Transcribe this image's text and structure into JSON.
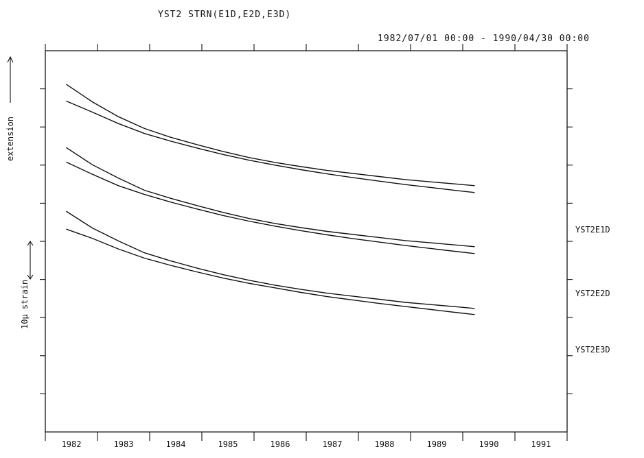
{
  "chart_data": {
    "type": "line",
    "title": "YST2 STRN(E1D,E2D,E3D)",
    "date_range": "1982/07/01 00:00 - 1990/04/30 00:00",
    "ylabel": "extension",
    "scale_label": "10µ strain",
    "x_tick_labels": [
      "1982",
      "1983",
      "1984",
      "1985",
      "1986",
      "1987",
      "1988",
      "1989",
      "1990",
      "1991"
    ],
    "xlim": [
      1981.6,
      1991.6
    ],
    "ylim": [
      0,
      100
    ],
    "grid": false,
    "series": [
      {
        "name": "YST2E1D",
        "x": [
          1982.0,
          1982.5,
          1983.0,
          1983.5,
          1984.0,
          1984.5,
          1985.0,
          1985.5,
          1986.0,
          1986.5,
          1987.0,
          1987.5,
          1988.0,
          1988.5,
          1989.0,
          1989.5,
          1989.83
        ],
        "upper": [
          91.2,
          86.6,
          82.7,
          79.6,
          77.3,
          75.4,
          73.6,
          72.0,
          70.7,
          69.6,
          68.6,
          67.8,
          67.0,
          66.2,
          65.6,
          65.0,
          64.6
        ],
        "lower": [
          86.8,
          83.9,
          80.9,
          78.3,
          76.3,
          74.5,
          72.8,
          71.3,
          70.0,
          68.8,
          67.7,
          66.7,
          65.8,
          64.9,
          64.1,
          63.3,
          62.8
        ]
      },
      {
        "name": "YST2E2D",
        "x": [
          1982.0,
          1982.5,
          1983.0,
          1983.5,
          1984.0,
          1984.5,
          1985.0,
          1985.5,
          1986.0,
          1986.5,
          1987.0,
          1987.5,
          1988.0,
          1988.5,
          1989.0,
          1989.5,
          1989.83
        ],
        "upper": [
          74.6,
          70.1,
          66.6,
          63.4,
          61.3,
          59.4,
          57.6,
          56.0,
          54.7,
          53.6,
          52.6,
          51.8,
          51.0,
          50.2,
          49.6,
          49.0,
          48.6
        ],
        "lower": [
          70.8,
          67.6,
          64.6,
          62.3,
          60.3,
          58.5,
          56.8,
          55.3,
          54.0,
          52.8,
          51.7,
          50.7,
          49.8,
          48.9,
          48.1,
          47.3,
          46.8
        ]
      },
      {
        "name": "YST2E3D",
        "x": [
          1982.0,
          1982.5,
          1983.0,
          1983.5,
          1984.0,
          1984.5,
          1985.0,
          1985.5,
          1986.0,
          1986.5,
          1987.0,
          1987.5,
          1988.0,
          1988.5,
          1989.0,
          1989.5,
          1989.83
        ],
        "upper": [
          57.9,
          53.5,
          50.1,
          47.0,
          44.9,
          43.0,
          41.3,
          39.8,
          38.5,
          37.4,
          36.4,
          35.6,
          34.8,
          34.0,
          33.4,
          32.8,
          32.4
        ],
        "lower": [
          53.2,
          50.8,
          48.0,
          45.6,
          43.7,
          42.0,
          40.4,
          39.0,
          37.8,
          36.6,
          35.5,
          34.6,
          33.7,
          32.9,
          32.1,
          31.3,
          30.8
        ]
      }
    ]
  }
}
